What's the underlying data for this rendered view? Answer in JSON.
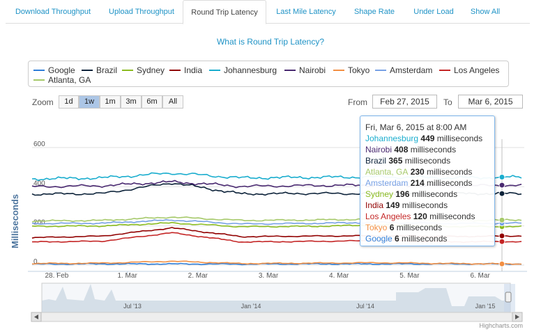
{
  "tabs": [
    {
      "label": "Download Throughput",
      "active": false
    },
    {
      "label": "Upload Throughput",
      "active": false
    },
    {
      "label": "Round Trip Latency",
      "active": true
    },
    {
      "label": "Last Mile Latency",
      "active": false
    },
    {
      "label": "Shape Rate",
      "active": false
    },
    {
      "label": "Under Load",
      "active": false
    },
    {
      "label": "Show All",
      "active": false
    }
  ],
  "help_link": "What is Round Trip Latency?",
  "zoom": {
    "label": "Zoom",
    "buttons": [
      "1d",
      "1w",
      "1m",
      "3m",
      "6m",
      "All"
    ],
    "selected": "1w"
  },
  "range": {
    "from_label": "From",
    "from_value": "Feb 27, 2015",
    "to_label": "To",
    "to_value": "Mar 6, 2015"
  },
  "tooltip": {
    "header": "Fri, Mar 6, 2015 at 8:00 AM",
    "unit": "milliseconds",
    "rows": [
      {
        "series": "Johannesburg",
        "value": "449",
        "color": "#1aadce"
      },
      {
        "series": "Nairobi",
        "value": "408",
        "color": "#492970"
      },
      {
        "series": "Brazil",
        "value": "365",
        "color": "#0d233a"
      },
      {
        "series": "Atlanta, GA",
        "value": "230",
        "color": "#a6c96a"
      },
      {
        "series": "Amsterdam",
        "value": "214",
        "color": "#77a1e5"
      },
      {
        "series": "Sydney",
        "value": "196",
        "color": "#8bbc21"
      },
      {
        "series": "India",
        "value": "149",
        "color": "#910000"
      },
      {
        "series": "Los Angeles",
        "value": "120",
        "color": "#c42525"
      },
      {
        "series": "Tokyo",
        "value": "6",
        "color": "#f28f43"
      },
      {
        "series": "Google",
        "value": "6",
        "color": "#2f7ed8"
      }
    ]
  },
  "navigator": {
    "labels": [
      "Jul '13",
      "Jan '14",
      "Jul '14",
      "Jan '15"
    ]
  },
  "credits": "Highcharts.com",
  "chart_data": {
    "type": "line",
    "ylabel": "Milliseconds",
    "xlabel": "",
    "yticks": [
      0,
      200,
      400,
      600
    ],
    "ylim": [
      0,
      600
    ],
    "x_tick_labels": [
      "28. Feb",
      "1. Mar",
      "2. Mar",
      "3. Mar",
      "4. Mar",
      "5. Mar",
      "6. Mar"
    ],
    "x_range": [
      "2015-02-27",
      "2015-03-06"
    ],
    "grid": true,
    "legend_position": "top",
    "series": [
      {
        "name": "Google",
        "color": "#2f7ed8",
        "values": [
          5,
          6,
          6,
          5,
          6,
          6,
          6,
          6
        ]
      },
      {
        "name": "Brazil",
        "color": "#0d233a",
        "values": [
          362,
          365,
          420,
          363,
          366,
          364,
          365,
          365
        ]
      },
      {
        "name": "Sydney",
        "color": "#8bbc21",
        "values": [
          198,
          200,
          215,
          196,
          198,
          205,
          197,
          196
        ]
      },
      {
        "name": "India",
        "color": "#910000",
        "values": [
          140,
          148,
          190,
          145,
          148,
          150,
          146,
          149
        ]
      },
      {
        "name": "Johannesburg",
        "color": "#1aadce",
        "values": [
          440,
          445,
          470,
          445,
          448,
          450,
          445,
          449
        ]
      },
      {
        "name": "Nairobi",
        "color": "#492970",
        "values": [
          400,
          405,
          425,
          402,
          406,
          408,
          404,
          408
        ]
      },
      {
        "name": "Tokyo",
        "color": "#f28f43",
        "values": [
          8,
          10,
          20,
          8,
          10,
          12,
          8,
          6
        ]
      },
      {
        "name": "Amsterdam",
        "color": "#77a1e5",
        "values": [
          212,
          214,
          230,
          210,
          213,
          218,
          212,
          214
        ]
      },
      {
        "name": "Los Angeles",
        "color": "#c42525",
        "values": [
          118,
          122,
          165,
          118,
          121,
          125,
          119,
          120
        ]
      },
      {
        "name": "Atlanta, GA",
        "color": "#a6c96a",
        "values": [
          225,
          228,
          245,
          228,
          230,
          235,
          228,
          230
        ]
      }
    ]
  }
}
